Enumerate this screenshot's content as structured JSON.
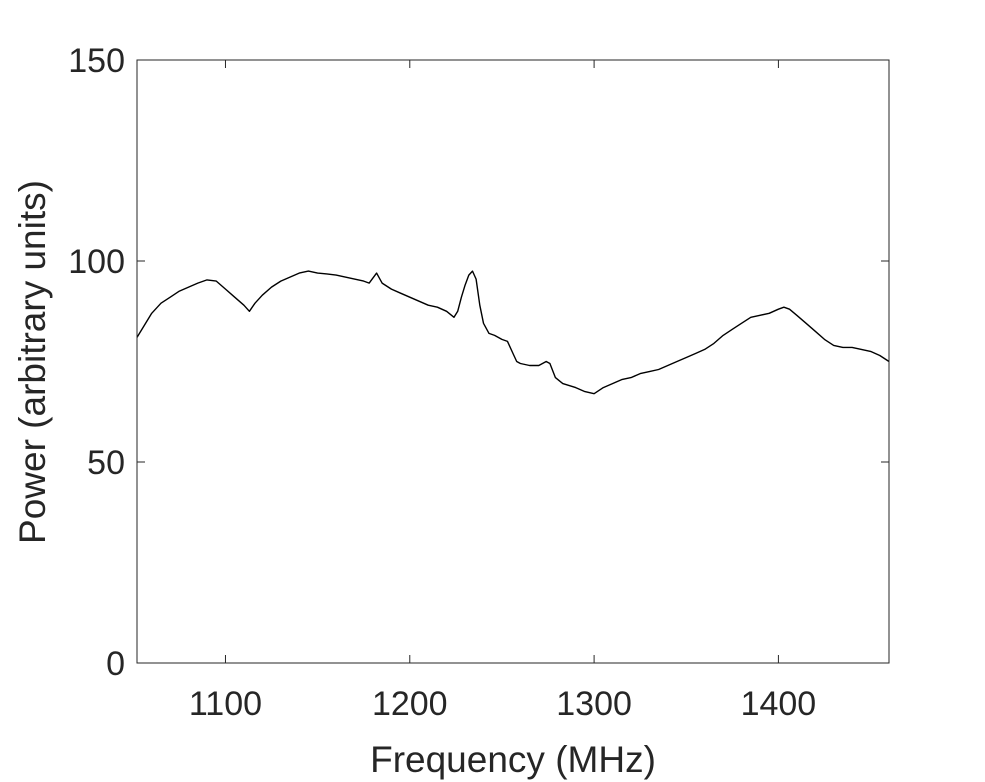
{
  "chart_data": {
    "type": "line",
    "title": "",
    "xlabel": "Frequency (MHz)",
    "ylabel": "Power (arbitrary units)",
    "xlim": [
      1052,
      1460
    ],
    "ylim": [
      0,
      150
    ],
    "xticks": [
      1100,
      1200,
      1300,
      1400
    ],
    "yticks": [
      0,
      50,
      100,
      150
    ],
    "grid": false,
    "legend": "none",
    "box": true,
    "colors": {
      "line": "#000000",
      "axes": "#262626",
      "background": "#ffffff"
    },
    "series": [
      {
        "x": [
          1052,
          1056,
          1060,
          1065,
          1070,
          1075,
          1080,
          1085,
          1090,
          1095,
          1100,
          1105,
          1110,
          1113,
          1116,
          1120,
          1125,
          1130,
          1135,
          1140,
          1145,
          1150,
          1155,
          1160,
          1165,
          1170,
          1175,
          1178,
          1182,
          1185,
          1190,
          1195,
          1200,
          1205,
          1210,
          1215,
          1220,
          1224,
          1226,
          1228,
          1230,
          1232,
          1234,
          1236,
          1238,
          1240,
          1243,
          1246,
          1250,
          1253,
          1256,
          1258,
          1260,
          1265,
          1270,
          1274,
          1276,
          1279,
          1283,
          1290,
          1295,
          1300,
          1305,
          1310,
          1315,
          1320,
          1325,
          1330,
          1335,
          1340,
          1345,
          1350,
          1355,
          1360,
          1365,
          1370,
          1375,
          1380,
          1385,
          1390,
          1395,
          1400,
          1403,
          1406,
          1410,
          1415,
          1420,
          1425,
          1430,
          1435,
          1440,
          1445,
          1450,
          1455,
          1460
        ],
        "y": [
          81,
          84,
          87,
          89.5,
          91,
          92.5,
          93.5,
          94.5,
          95.3,
          95,
          93,
          91,
          89,
          87.5,
          89.5,
          91.5,
          93.5,
          95,
          96,
          97,
          97.5,
          97,
          96.8,
          96.5,
          96,
          95.5,
          95,
          94.5,
          97,
          94.5,
          93,
          92,
          91,
          90,
          89,
          88.5,
          87.5,
          86,
          87.5,
          91,
          94,
          96.5,
          97.5,
          95.5,
          89,
          84.5,
          82,
          81.5,
          80.5,
          80,
          77,
          75,
          74.5,
          74,
          74,
          75,
          74.5,
          71,
          69.5,
          68.5,
          67.5,
          67,
          68.5,
          69.5,
          70.5,
          71,
          72,
          72.5,
          73,
          74,
          75,
          76,
          77,
          78,
          79.5,
          81.5,
          83,
          84.5,
          86,
          86.5,
          87,
          88,
          88.5,
          88,
          86.5,
          84.5,
          82.5,
          80.5,
          79,
          78.5,
          78.5,
          78,
          77.5,
          76.5,
          75
        ]
      }
    ]
  }
}
